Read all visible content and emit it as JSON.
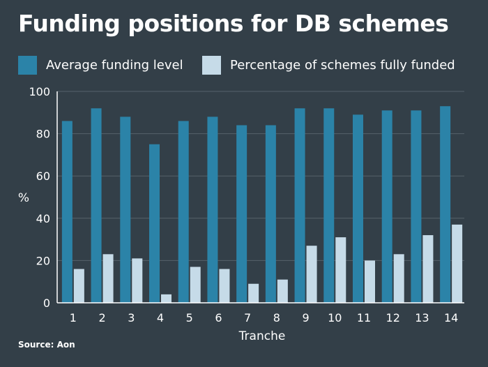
{
  "title": "Funding positions for DB schemes",
  "source": "Source: Aon",
  "colors": {
    "background": "#333f48",
    "series_1": "#2b83a8",
    "series_2": "#c6dbe8",
    "axis": "#ffffff",
    "grid": "#56626b"
  },
  "chart_data": {
    "type": "bar",
    "title": "Funding positions for DB schemes",
    "xlabel": "Tranche",
    "ylabel": "%",
    "ylim": [
      0,
      100
    ],
    "yticks": [
      0,
      20,
      40,
      60,
      80,
      100
    ],
    "grid": true,
    "legend_position": "top-left",
    "categories": [
      "1",
      "2",
      "3",
      "4",
      "5",
      "6",
      "7",
      "8",
      "9",
      "10",
      "11",
      "12",
      "13",
      "14"
    ],
    "series": [
      {
        "name": "Average funding level",
        "values": [
          86,
          92,
          88,
          75,
          86,
          88,
          84,
          84,
          92,
          92,
          89,
          91,
          91,
          93
        ]
      },
      {
        "name": "Percentage of schemes fully funded",
        "values": [
          16,
          23,
          21,
          4,
          17,
          16,
          9,
          11,
          27,
          31,
          20,
          23,
          32,
          37
        ]
      }
    ]
  }
}
